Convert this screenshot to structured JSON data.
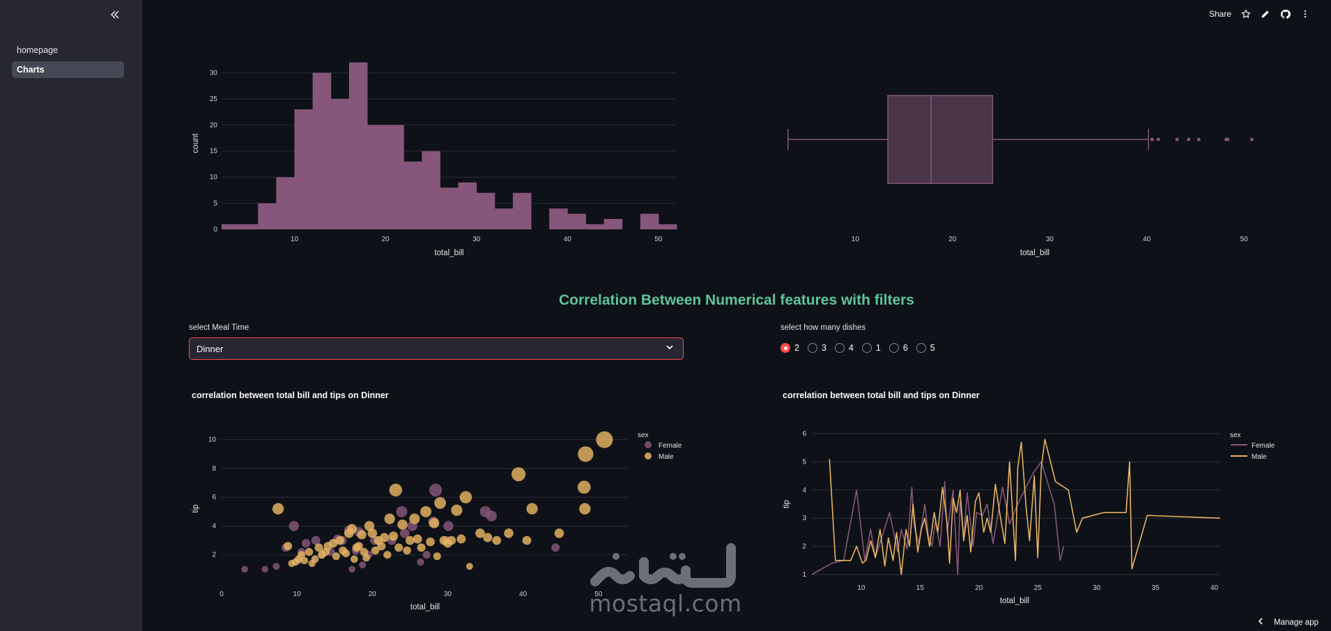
{
  "sidebar": {
    "collapse_icon": "double-chevron-left-icon",
    "items": [
      {
        "label": "homepage",
        "active": false
      },
      {
        "label": "Charts",
        "active": true
      }
    ]
  },
  "toolbar": {
    "share_label": "Share",
    "icons": [
      "star-icon",
      "edit-pencil-icon",
      "github-icon",
      "more-icon"
    ]
  },
  "colors": {
    "accent": "#ff4b4b",
    "female": "#86577a",
    "male": "#e8b563",
    "title": "#5fc49b",
    "background": "#0e1117",
    "sidebar": "#262730"
  },
  "histogram": {
    "chart_data": {
      "type": "bar",
      "xlabel": "total_bill",
      "ylabel": "count",
      "xlim": [
        2,
        52
      ],
      "ylim": [
        0,
        33
      ],
      "xticks": [
        10,
        20,
        30,
        40,
        50
      ],
      "yticks": [
        0,
        5,
        10,
        15,
        20,
        25,
        30
      ],
      "bin_start": 2,
      "bin_width": 2,
      "values": [
        1,
        1,
        5,
        10,
        23,
        30,
        25,
        32,
        20,
        20,
        13,
        15,
        8,
        9,
        7,
        4,
        7,
        0,
        4,
        3,
        1,
        2,
        0,
        3,
        1
      ]
    }
  },
  "boxplot": {
    "chart_data": {
      "type": "box",
      "xlabel": "total_bill",
      "xlim": [
        2.3,
        52.5
      ],
      "xticks": [
        10,
        20,
        30,
        40,
        50
      ],
      "min": 3.07,
      "q1": 13.35,
      "median": 17.8,
      "q3": 24.13,
      "max": 40.17,
      "outliers": [
        40.55,
        41.19,
        43.11,
        44.3,
        45.35,
        48.17,
        48.27,
        48.33,
        50.81
      ]
    }
  },
  "section_title": "Correlation Between Numerical features with filters",
  "meal_filter": {
    "label": "select Meal Time",
    "value": "Dinner",
    "chevron": "chevron-down-icon"
  },
  "dish_filter": {
    "label": "select how many dishes",
    "options": [
      "2",
      "3",
      "4",
      "1",
      "6",
      "5"
    ],
    "selected": "2"
  },
  "scatter": {
    "title": "correlation between total bill and tips on Dinner",
    "chart_data": {
      "type": "scatter",
      "xlabel": "total_bill",
      "ylabel": "tip",
      "xlim": [
        0,
        54
      ],
      "ylim": [
        0,
        11
      ],
      "xticks": [
        0,
        10,
        20,
        30,
        40,
        50
      ],
      "yticks": [
        2,
        4,
        6,
        8,
        10
      ],
      "legend_title": "sex",
      "series": [
        {
          "name": "Female",
          "points": [
            [
              3.07,
              1
            ],
            [
              5.75,
              1
            ],
            [
              7.25,
              1.2
            ],
            [
              8.5,
              2.5
            ],
            [
              9.6,
              4
            ],
            [
              10.3,
              1.6
            ],
            [
              10.6,
              2.2
            ],
            [
              11.2,
              2.8
            ],
            [
              12.5,
              3
            ],
            [
              13.3,
              2
            ],
            [
              14.5,
              2.2
            ],
            [
              15.4,
              3.1
            ],
            [
              16,
              3
            ],
            [
              16.9,
              3.7
            ],
            [
              17.3,
              1
            ],
            [
              17.8,
              2.3
            ],
            [
              18.2,
              3.6
            ],
            [
              18.7,
              1.3
            ],
            [
              19.5,
              2
            ],
            [
              20.3,
              3
            ],
            [
              22.6,
              3
            ],
            [
              23.9,
              5
            ],
            [
              24.3,
              3.5
            ],
            [
              25.3,
              4
            ],
            [
              26.4,
              1.5
            ],
            [
              27.2,
              2
            ],
            [
              28.1,
              4.3
            ],
            [
              28.4,
              6.5
            ],
            [
              29.8,
              3
            ],
            [
              30.1,
              4
            ],
            [
              35,
              5
            ],
            [
              35.8,
              4.7
            ],
            [
              44.3,
              2.5
            ]
          ]
        },
        {
          "name": "Male",
          "points": [
            [
              7.5,
              5.2
            ],
            [
              8.8,
              2.6
            ],
            [
              9.3,
              1.4
            ],
            [
              9.8,
              1.5
            ],
            [
              10.2,
              1.7
            ],
            [
              10.6,
              2
            ],
            [
              11,
              1.6
            ],
            [
              11.6,
              2.2
            ],
            [
              12,
              1.4
            ],
            [
              12.4,
              1.7
            ],
            [
              12.9,
              2.5
            ],
            [
              13.3,
              2
            ],
            [
              13.8,
              2.2
            ],
            [
              14.1,
              2.6
            ],
            [
              14.8,
              2.8
            ],
            [
              15.2,
              1.9
            ],
            [
              15.7,
              3
            ],
            [
              16.1,
              2.3
            ],
            [
              16.5,
              2.1
            ],
            [
              16.9,
              3.5
            ],
            [
              17.3,
              3.8
            ],
            [
              17.6,
              1.7
            ],
            [
              17.9,
              2.5
            ],
            [
              18.2,
              2.6
            ],
            [
              18.6,
              3.4
            ],
            [
              18.9,
              2.2
            ],
            [
              19.2,
              1.8
            ],
            [
              19.6,
              4
            ],
            [
              20,
              3.5
            ],
            [
              20.4,
              2.3
            ],
            [
              20.8,
              3
            ],
            [
              21.2,
              2.6
            ],
            [
              21.6,
              3.2
            ],
            [
              22,
              2
            ],
            [
              22.3,
              4.5
            ],
            [
              22.8,
              3.3
            ],
            [
              23.1,
              6.5
            ],
            [
              23.5,
              2.5
            ],
            [
              24,
              4.1
            ],
            [
              24.6,
              2.3
            ],
            [
              25,
              3
            ],
            [
              25.6,
              4.5
            ],
            [
              26,
              3.1
            ],
            [
              26.5,
              2.5
            ],
            [
              27.1,
              5
            ],
            [
              27.7,
              2.9
            ],
            [
              28.2,
              4.2
            ],
            [
              28.6,
              1.9
            ],
            [
              29,
              5.6
            ],
            [
              29.5,
              3
            ],
            [
              30,
              2.8
            ],
            [
              30.5,
              3
            ],
            [
              31.2,
              5.1
            ],
            [
              31.8,
              3.1
            ],
            [
              32.4,
              6
            ],
            [
              32.9,
              1.2
            ],
            [
              34.3,
              3.5
            ],
            [
              35.3,
              3.2
            ],
            [
              36.5,
              3
            ],
            [
              38.1,
              3.5
            ],
            [
              39.4,
              7.6
            ],
            [
              40.5,
              3
            ],
            [
              41.2,
              5.2
            ],
            [
              44.8,
              3.5
            ],
            [
              48.1,
              6.7
            ],
            [
              48.2,
              5.2
            ],
            [
              48.3,
              9
            ],
            [
              50.8,
              10
            ]
          ]
        }
      ]
    }
  },
  "line": {
    "title": "correlation between total bill and tips on Dinner",
    "chart_data": {
      "type": "line",
      "xlabel": "total_bill",
      "ylabel": "tip",
      "xlim": [
        5.8,
        40.5
      ],
      "ylim": [
        0.9,
        6.1
      ],
      "xticks": [
        10,
        15,
        20,
        25,
        30,
        35,
        40
      ],
      "yticks": [
        1,
        2,
        3,
        4,
        5,
        6
      ],
      "legend_title": "sex",
      "series": [
        {
          "name": "Female",
          "x": [
            5.8,
            7.5,
            8.5,
            9.6,
            10.3,
            10.8,
            11.2,
            12.4,
            13.1,
            13.4,
            13.9,
            14.3,
            14.5,
            14.9,
            15.4,
            15.7,
            16,
            16.3,
            16.7,
            17.1,
            17.3,
            17.8,
            18.2,
            18.4,
            18.7,
            19,
            19.5,
            19.8,
            20.3,
            20.7,
            21.2,
            22,
            22.6,
            23.4,
            24.6,
            25.3,
            26.4,
            26.9,
            27.2
          ],
          "y": [
            1,
            1.4,
            1.5,
            4,
            1.5,
            2.6,
            1.6,
            3.2,
            1.8,
            2.6,
            1.9,
            4.1,
            2.7,
            2.1,
            3.5,
            2.4,
            2,
            2.9,
            2,
            4.3,
            2.5,
            4,
            1,
            3.6,
            2.3,
            3.9,
            2,
            3.2,
            3.1,
            3.5,
            2.1,
            4.1,
            2.8,
            3.6,
            4.6,
            5,
            3.5,
            1.5,
            2
          ]
        },
        {
          "name": "Male",
          "x": [
            7.3,
            7.8,
            8.6,
            9.1,
            9.6,
            10.1,
            10.4,
            10.8,
            11.2,
            11.6,
            12,
            12.3,
            12.7,
            13,
            13.4,
            13.8,
            14.1,
            14.4,
            14.8,
            15.1,
            15.4,
            15.8,
            16.2,
            16.5,
            16.9,
            17.3,
            17.5,
            17.8,
            18.1,
            18.4,
            18.7,
            19,
            19.3,
            19.7,
            20,
            20.4,
            20.7,
            21,
            21.4,
            21.8,
            22.2,
            22.6,
            23.1,
            23.3,
            23.6,
            24,
            24.3,
            24.7,
            25,
            25.3,
            25.6,
            26.5,
            27.6,
            28.3,
            28.8,
            30.6,
            32.5,
            32.8,
            33,
            34.3,
            40.5
          ],
          "y": [
            5.1,
            1.5,
            1.5,
            1.5,
            2,
            1.4,
            1.5,
            2.2,
            1.6,
            2.6,
            1.3,
            2.3,
            1.5,
            2.5,
            1,
            2.6,
            2,
            3.5,
            1.8,
            2.6,
            3,
            2,
            3.2,
            2.5,
            4.1,
            2.8,
            1.4,
            3.7,
            3.2,
            4,
            2.2,
            3.1,
            1.8,
            3.6,
            3.9,
            2.5,
            3,
            2.5,
            4.2,
            3.1,
            2.1,
            5,
            1.5,
            4.8,
            5.7,
            3.4,
            2.2,
            4.5,
            1.6,
            4.8,
            5.8,
            4.3,
            4,
            2.5,
            3,
            3.2,
            3.2,
            5,
            1.2,
            3.1,
            3
          ]
        }
      ]
    }
  },
  "watermark": {
    "text": "mostaql.com",
    "arabic": "مستقل"
  },
  "manage_app": {
    "label": "Manage app",
    "icon": "chevron-left-icon"
  }
}
